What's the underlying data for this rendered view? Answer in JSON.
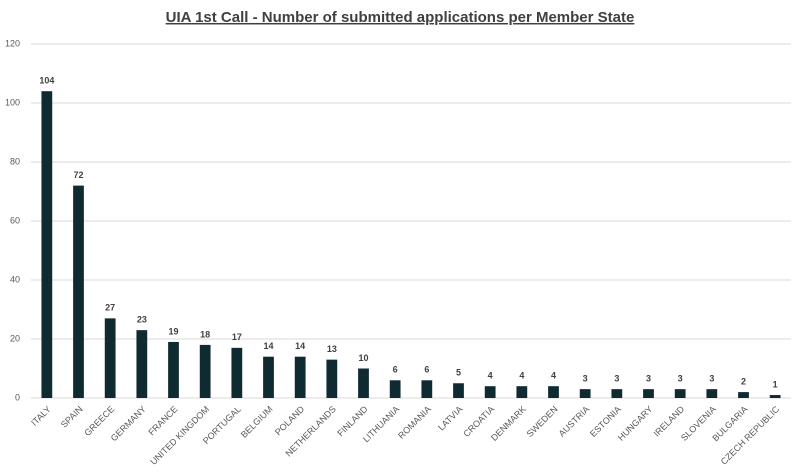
{
  "chart_data": {
    "type": "bar",
    "title": "UIA 1st Call - Number of submitted applications per Member State",
    "categories": [
      "ITALY",
      "SPAIN",
      "GREECE",
      "GERMANY",
      "FRANCE",
      "UNITED KINGDOM",
      "PORTUGAL",
      "BELGIUM",
      "POLAND",
      "NETHERLANDS",
      "FINLAND",
      "LITHUANIA",
      "ROMANIA",
      "LATVIA",
      "CROATIA",
      "DENMARK",
      "SWEDEN",
      "AUSTRIA",
      "ESTONIA",
      "HUNGARY",
      "IRELAND",
      "SLOVENIA",
      "BULGARIA",
      "CZECH REPUBLIC"
    ],
    "values": [
      104,
      72,
      27,
      23,
      19,
      18,
      17,
      14,
      14,
      13,
      10,
      6,
      6,
      5,
      4,
      4,
      4,
      3,
      3,
      3,
      3,
      3,
      2,
      1
    ],
    "color": "#0f2b31",
    "ylim": [
      0,
      120
    ],
    "yticks": [
      0,
      20,
      40,
      60,
      80,
      100,
      120
    ],
    "grid": true
  }
}
